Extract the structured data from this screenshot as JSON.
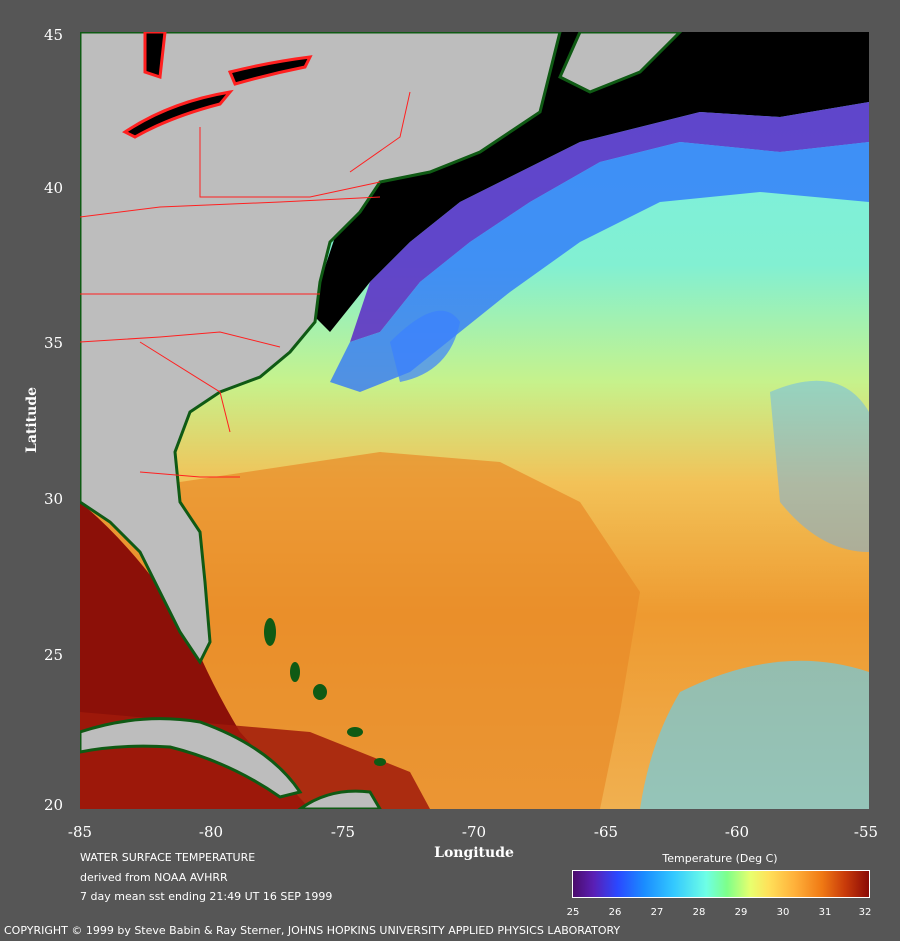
{
  "map": {
    "type": "sea-surface-temperature",
    "extent": {
      "lon": [
        -85,
        -55
      ],
      "lat": [
        20,
        45
      ]
    },
    "x_ticks": [
      "-85",
      "-80",
      "-75",
      "-70",
      "-65",
      "-60",
      "-55"
    ],
    "y_ticks": [
      "45",
      "40",
      "35",
      "30",
      "25",
      "20"
    ],
    "x_label": "Longitude",
    "y_label": "Latitude",
    "land_color": "#bdbdbd",
    "coast_color": "#0f5a14",
    "boundary_color": "#ff2020",
    "no_data_color": "#000000"
  },
  "info": {
    "line1": "WATER SURFACE TEMPERATURE",
    "line2": "derived from NOAA AVHRR",
    "line3": "7 day mean sst ending 21:49 UT 16 SEP 1999"
  },
  "colorbar": {
    "title": "Temperature (Deg C)",
    "ticks": [
      "25",
      "26",
      "27",
      "28",
      "29",
      "30",
      "31",
      "32"
    ]
  },
  "copyright": "COPYRIGHT © 1999 by Steve Babin & Ray Sterner, JOHNS HOPKINS UNIVERSITY APPLIED PHYSICS LABORATORY"
}
